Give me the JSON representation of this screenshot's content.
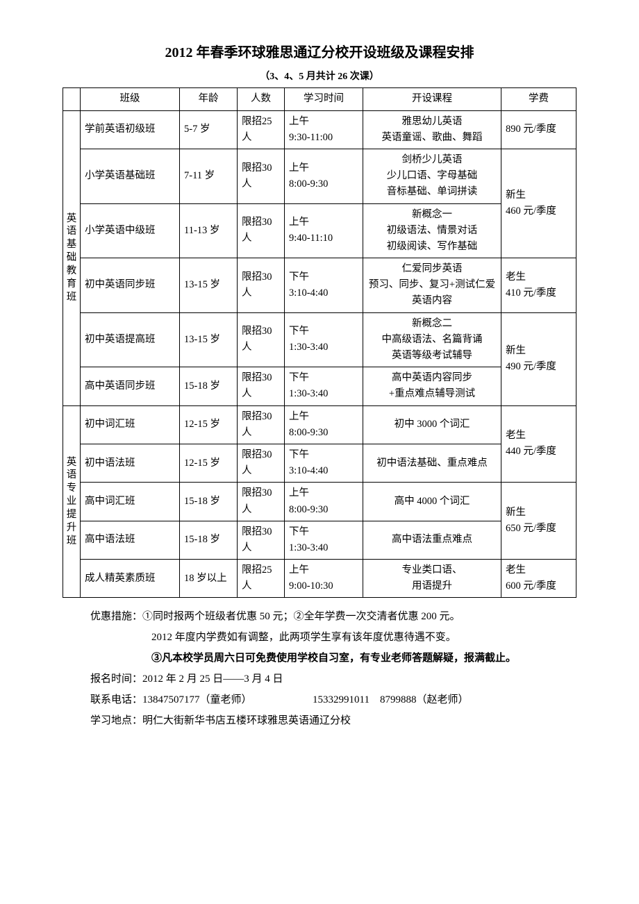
{
  "title": "2012 年春季环球雅思通辽分校开设班级及课程安排",
  "subtitle": "（3、4、5 月共计 26 次课）",
  "headers": {
    "class": "班级",
    "age": "年龄",
    "num": "人数",
    "time": "学习时间",
    "course": "开设课程",
    "fee": "学费"
  },
  "category1": "英语基础教育班",
  "category2": "英语专业提升班",
  "rows": {
    "r1": {
      "class": "学前英语初级班",
      "age": "5-7 岁",
      "num": "限招25 人",
      "time": "上午\n9:30-11:00",
      "course": "雅思幼儿英语\n英语童谣、歌曲、舞蹈",
      "fee": "890 元/季度"
    },
    "r2": {
      "class": "小学英语基础班",
      "age": "7-11 岁",
      "num": "限招30 人",
      "time": "上午\n8:00-9:30",
      "course": "剑桥少儿英语\n少儿口语、字母基础\n音标基础、单词拼读"
    },
    "fee_group1": "新生\n460 元/季度",
    "r3": {
      "class": "小学英语中级班",
      "age": "11-13 岁",
      "num": "限招30 人",
      "time": "上午\n9:40-11:10",
      "course": "新概念一\n初级语法、情景对话\n初级阅读、写作基础"
    },
    "r4": {
      "class": "初中英语同步班",
      "age": "13-15 岁",
      "num": "限招30 人",
      "time": "下午\n3:10-4:40",
      "course": "仁爱同步英语\n预习、同步、复习+测试仁爱英语内容"
    },
    "fee_group2": "老生\n410 元/季度",
    "r5": {
      "class": "初中英语提高班",
      "age": "13-15 岁",
      "num": "限招30 人",
      "time": "下午\n1:30-3:40",
      "course": "新概念二\n中高级语法、名篇背诵\n英语等级考试辅导"
    },
    "fee_group3": "新生\n490 元/季度",
    "r6": {
      "class": "高中英语同步班",
      "age": "15-18 岁",
      "num": "限招30 人",
      "time": "下午\n1:30-3:40",
      "course": "高中英语内容同步\n+重点难点辅导测试"
    },
    "r7": {
      "class": "初中词汇班",
      "age": "12-15 岁",
      "num": "限招30 人",
      "time": "上午\n8:00-9:30",
      "course": "初中 3000 个词汇"
    },
    "fee_group4": "老生\n440 元/季度",
    "r8": {
      "class": "初中语法班",
      "age": "12-15 岁",
      "num": "限招30 人",
      "time": "下午\n3:10-4:40",
      "course": "初中语法基础、重点难点"
    },
    "r9": {
      "class": "高中词汇班",
      "age": "15-18 岁",
      "num": "限招30 人",
      "time": "上午\n8:00-9:30",
      "course": "高中 4000 个词汇"
    },
    "fee_group5": "新生\n650 元/季度",
    "r10": {
      "class": "高中语法班",
      "age": "15-18 岁",
      "num": "限招30 人",
      "time": "下午\n1:30-3:40",
      "course": "高中语法重点难点"
    },
    "r11": {
      "class": "成人精英素质班",
      "age": "18 岁以上",
      "num": "限招25 人",
      "time": "上午\n9:00-10:30",
      "course": "专业类口语、\n用语提升"
    },
    "fee_group6": "老生\n600 元/季度"
  },
  "notes": {
    "n1": "优惠措施：①同时报两个班级者优惠 50 元；②全年学费一次交清者优惠 200 元。",
    "n2": "2012 年度内学费如有调整，此两项学生享有该年度优惠待遇不变。",
    "n3": "③凡本校学员周六日可免费使用学校自习室，有专业老师答题解疑，报满截止。",
    "n4": "报名时间：2012 年 2 月 25 日——3 月 4 日",
    "n5a": "联系电话：13847507177（童老师）",
    "n5b": "15332991011　8799888（赵老师）",
    "n6": "学习地点：明仁大街新华书店五楼环球雅思英语通辽分校"
  }
}
